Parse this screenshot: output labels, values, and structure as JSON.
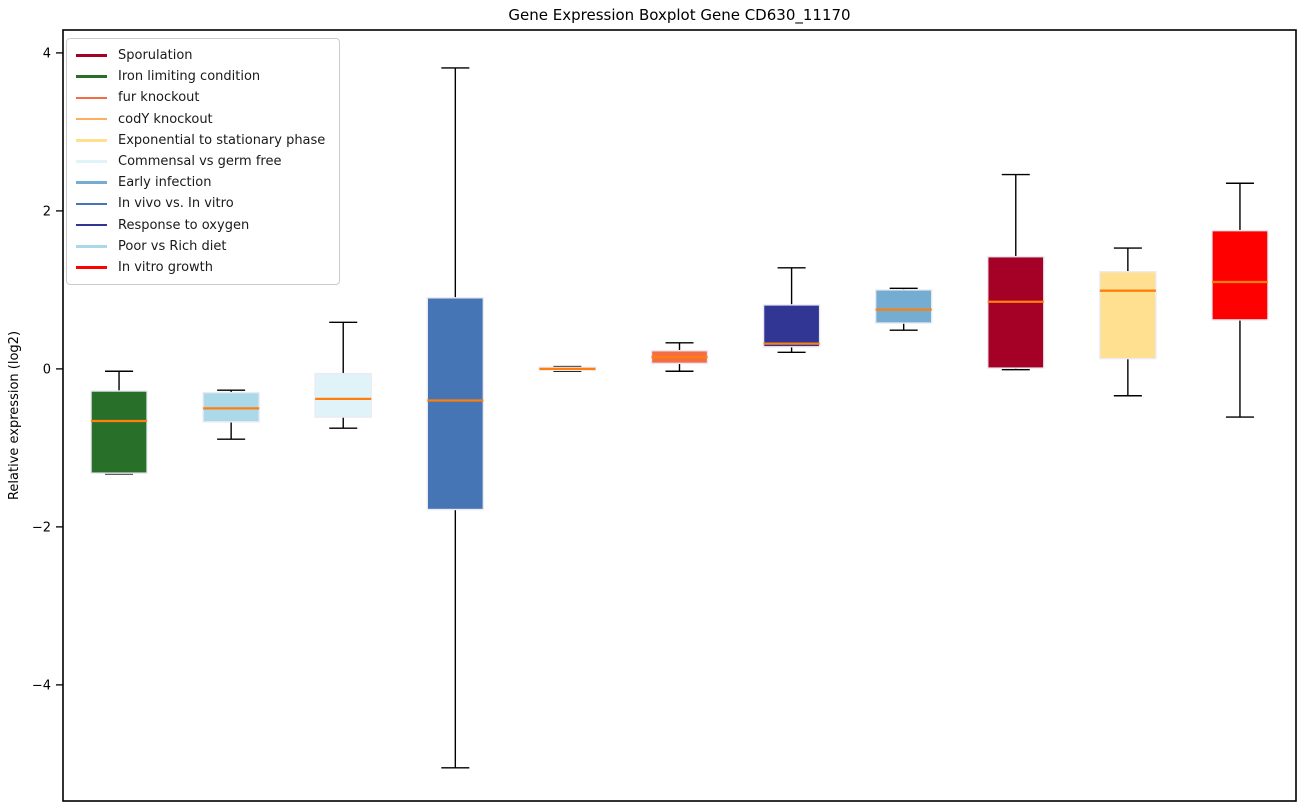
{
  "chart_data": {
    "type": "boxplot",
    "title": "Gene Expression Boxplot Gene CD630_11170",
    "xlabel": "",
    "ylabel": "Relative expression (log2)",
    "ylim": [
      -5.47,
      4.29
    ],
    "yticks": [
      {
        "value": 4,
        "label": "4"
      },
      {
        "value": 2,
        "label": "2"
      },
      {
        "value": 0,
        "label": "0"
      },
      {
        "value": -2,
        "label": "−2"
      },
      {
        "value": -4,
        "label": "−4"
      }
    ],
    "grid": false,
    "legend_position": "upper-left",
    "median_color": "#ff7f0e",
    "whisker_color": "#000000",
    "box_edge_color": "#eaeaf2",
    "legend": [
      {
        "label": "Sporulation",
        "color": "#a50026"
      },
      {
        "label": "Iron limiting condition",
        "color": "#28702a"
      },
      {
        "label": "fur knockout",
        "color": "#f46d43"
      },
      {
        "label": "codY knockout",
        "color": "#fdae61"
      },
      {
        "label": "Exponential to stationary phase",
        "color": "#fee090"
      },
      {
        "label": "Commensal vs germ free",
        "color": "#e0f3f8"
      },
      {
        "label": "Early infection",
        "color": "#74add1"
      },
      {
        "label": "In vivo vs. In vitro",
        "color": "#4575b4"
      },
      {
        "label": "Response to oxygen",
        "color": "#313695"
      },
      {
        "label": "Poor vs Rich diet",
        "color": "#abd9e9"
      },
      {
        "label": "In vitro growth",
        "color": "#ff0000"
      }
    ],
    "boxes": [
      {
        "name": "Iron limiting condition",
        "color": "#28702a",
        "whisker_low": -1.33,
        "q1": -1.32,
        "median": -0.66,
        "q3": -0.28,
        "whisker_high": -0.03
      },
      {
        "name": "Poor vs Rich diet",
        "color": "#abd9e9",
        "whisker_low": -0.89,
        "q1": -0.67,
        "median": -0.5,
        "q3": -0.3,
        "whisker_high": -0.27
      },
      {
        "name": "Commensal vs germ free",
        "color": "#e0f3f8",
        "whisker_low": -0.75,
        "q1": -0.61,
        "median": -0.38,
        "q3": -0.06,
        "whisker_high": 0.59
      },
      {
        "name": "In vivo vs. In vitro",
        "color": "#4575b4",
        "whisker_low": -5.05,
        "q1": -1.78,
        "median": -0.4,
        "q3": 0.9,
        "whisker_high": 3.81
      },
      {
        "name": "codY knockout",
        "color": "#fdae61",
        "whisker_low": -0.03,
        "q1": -0.02,
        "median": 0.0,
        "q3": 0.02,
        "whisker_high": 0.03
      },
      {
        "name": "fur knockout",
        "color": "#f46d43",
        "whisker_low": -0.03,
        "q1": 0.07,
        "median": 0.15,
        "q3": 0.23,
        "whisker_high": 0.33
      },
      {
        "name": "Response to oxygen",
        "color": "#313695",
        "whisker_low": 0.21,
        "q1": 0.28,
        "median": 0.32,
        "q3": 0.81,
        "whisker_high": 1.28
      },
      {
        "name": "Early infection",
        "color": "#74add1",
        "whisker_low": 0.49,
        "q1": 0.58,
        "median": 0.75,
        "q3": 1.0,
        "whisker_high": 1.02
      },
      {
        "name": "Sporulation",
        "color": "#a50026",
        "whisker_low": -0.01,
        "q1": 0.01,
        "median": 0.85,
        "q3": 1.42,
        "whisker_high": 2.46
      },
      {
        "name": "Exponential to stationary phase",
        "color": "#fee090",
        "whisker_low": -0.34,
        "q1": 0.13,
        "median": 0.99,
        "q3": 1.23,
        "whisker_high": 1.53
      },
      {
        "name": "In vitro growth",
        "color": "#ff0000",
        "whisker_low": -0.61,
        "q1": 0.62,
        "median": 1.1,
        "q3": 1.75,
        "whisker_high": 2.35
      }
    ]
  }
}
